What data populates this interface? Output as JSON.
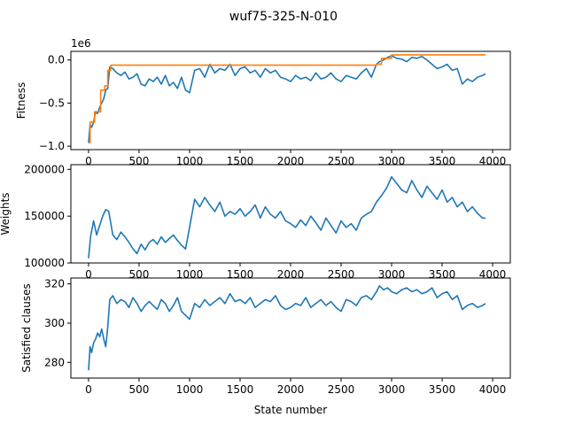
{
  "figure": {
    "title": "wuf75-325-N-010",
    "xlabel": "State number"
  },
  "colors": {
    "blue": "#1f77b4",
    "orange": "#ff7f0e",
    "axis": "#000000"
  },
  "chart_data": [
    {
      "type": "line",
      "title": "",
      "xlabel": "",
      "ylabel": "Fitness",
      "offset_text": "1e6",
      "xlim": [
        -175,
        4175
      ],
      "ylim": [
        -1.04,
        0.1
      ],
      "xticks": [
        0,
        500,
        1000,
        1500,
        2000,
        2500,
        3000,
        3500,
        4000
      ],
      "yticks": [
        0.0,
        -0.5,
        -1.0
      ],
      "ytick_labels": [
        "0.0",
        "−0.5",
        "−1.0"
      ],
      "grid": false,
      "series": [
        {
          "color": "#1f77b4",
          "x": [
            0,
            15,
            30,
            50,
            70,
            90,
            110,
            130,
            150,
            170,
            190,
            210,
            240,
            280,
            320,
            360,
            400,
            440,
            480,
            520,
            560,
            600,
            640,
            680,
            720,
            760,
            800,
            840,
            880,
            920,
            960,
            1000,
            1050,
            1100,
            1150,
            1200,
            1250,
            1300,
            1350,
            1400,
            1450,
            1500,
            1550,
            1600,
            1650,
            1700,
            1750,
            1800,
            1850,
            1900,
            1950,
            2000,
            2050,
            2100,
            2150,
            2200,
            2250,
            2300,
            2350,
            2400,
            2450,
            2500,
            2550,
            2600,
            2650,
            2700,
            2750,
            2800,
            2850,
            2880,
            2920,
            2960,
            3000,
            3050,
            3100,
            3150,
            3200,
            3250,
            3300,
            3350,
            3400,
            3450,
            3500,
            3550,
            3600,
            3650,
            3700,
            3750,
            3800,
            3850,
            3900,
            3930
          ],
          "y": [
            -0.96,
            -0.75,
            -0.78,
            -0.72,
            -0.6,
            -0.62,
            -0.55,
            -0.5,
            -0.45,
            -0.35,
            -0.33,
            -0.08,
            -0.1,
            -0.15,
            -0.18,
            -0.14,
            -0.22,
            -0.2,
            -0.16,
            -0.28,
            -0.3,
            -0.22,
            -0.25,
            -0.2,
            -0.28,
            -0.18,
            -0.3,
            -0.26,
            -0.33,
            -0.2,
            -0.35,
            -0.38,
            -0.12,
            -0.1,
            -0.2,
            -0.05,
            -0.15,
            -0.1,
            -0.12,
            -0.05,
            -0.18,
            -0.1,
            -0.08,
            -0.15,
            -0.12,
            -0.2,
            -0.1,
            -0.15,
            -0.12,
            -0.2,
            -0.22,
            -0.25,
            -0.18,
            -0.22,
            -0.2,
            -0.24,
            -0.15,
            -0.22,
            -0.2,
            -0.15,
            -0.22,
            -0.25,
            -0.18,
            -0.2,
            -0.22,
            -0.15,
            -0.1,
            -0.2,
            -0.05,
            -0.02,
            0.0,
            0.03,
            0.05,
            0.02,
            0.01,
            -0.02,
            0.03,
            0.02,
            0.04,
            0.0,
            -0.05,
            -0.1,
            -0.08,
            -0.05,
            -0.12,
            -0.1,
            -0.28,
            -0.22,
            -0.25,
            -0.2,
            -0.18,
            -0.16
          ]
        },
        {
          "color": "#ff7f0e",
          "x": [
            0,
            15,
            15,
            60,
            60,
            120,
            120,
            160,
            160,
            190,
            190,
            220,
            220,
            2850,
            2850,
            2900,
            2900,
            3000,
            3000,
            3930
          ],
          "y": [
            -0.96,
            -0.96,
            -0.72,
            -0.72,
            -0.6,
            -0.6,
            -0.35,
            -0.35,
            -0.3,
            -0.3,
            -0.12,
            -0.12,
            -0.06,
            -0.06,
            -0.05,
            -0.05,
            0.02,
            0.02,
            0.06,
            0.06
          ]
        }
      ]
    },
    {
      "type": "line",
      "title": "",
      "xlabel": "",
      "ylabel": "Weights",
      "xlim": [
        -175,
        4175
      ],
      "ylim": [
        100000,
        205000
      ],
      "xticks": [
        0,
        500,
        1000,
        1500,
        2000,
        2500,
        3000,
        3500,
        4000
      ],
      "yticks": [
        100000,
        150000,
        200000
      ],
      "grid": false,
      "series": [
        {
          "color": "#1f77b4",
          "x": [
            0,
            20,
            50,
            80,
            110,
            140,
            170,
            200,
            240,
            280,
            320,
            360,
            400,
            440,
            480,
            520,
            560,
            600,
            640,
            680,
            720,
            760,
            800,
            840,
            880,
            920,
            960,
            1000,
            1050,
            1100,
            1150,
            1200,
            1250,
            1300,
            1350,
            1400,
            1450,
            1500,
            1550,
            1600,
            1650,
            1700,
            1750,
            1800,
            1850,
            1900,
            1950,
            2000,
            2050,
            2100,
            2150,
            2200,
            2250,
            2300,
            2350,
            2400,
            2450,
            2500,
            2550,
            2600,
            2650,
            2700,
            2750,
            2800,
            2850,
            2900,
            2950,
            3000,
            3050,
            3100,
            3150,
            3200,
            3250,
            3300,
            3350,
            3400,
            3450,
            3500,
            3550,
            3600,
            3650,
            3700,
            3750,
            3800,
            3850,
            3900,
            3930
          ],
          "y": [
            105000,
            128000,
            145000,
            130000,
            140000,
            150000,
            157000,
            155000,
            130000,
            125000,
            133000,
            128000,
            122000,
            115000,
            110000,
            120000,
            114000,
            122000,
            125000,
            120000,
            128000,
            122000,
            126000,
            130000,
            124000,
            119000,
            115000,
            138000,
            168000,
            160000,
            170000,
            162000,
            155000,
            165000,
            150000,
            155000,
            152000,
            158000,
            150000,
            155000,
            162000,
            148000,
            160000,
            152000,
            148000,
            155000,
            145000,
            142000,
            138000,
            146000,
            140000,
            150000,
            143000,
            135000,
            148000,
            140000,
            132000,
            145000,
            138000,
            142000,
            135000,
            148000,
            152000,
            155000,
            165000,
            172000,
            180000,
            192000,
            185000,
            178000,
            175000,
            188000,
            178000,
            170000,
            182000,
            175000,
            168000,
            178000,
            165000,
            170000,
            160000,
            165000,
            155000,
            160000,
            153000,
            148000,
            148000
          ]
        }
      ]
    },
    {
      "type": "line",
      "title": "",
      "xlabel": "State number",
      "ylabel": "Satisfied clauses",
      "xlim": [
        -175,
        4175
      ],
      "ylim": [
        272,
        323
      ],
      "xticks": [
        0,
        500,
        1000,
        1500,
        2000,
        2500,
        3000,
        3500,
        4000
      ],
      "yticks": [
        280,
        300,
        320
      ],
      "grid": false,
      "series": [
        {
          "color": "#1f77b4",
          "x": [
            0,
            15,
            30,
            50,
            70,
            90,
            110,
            130,
            150,
            170,
            190,
            210,
            240,
            280,
            320,
            360,
            400,
            440,
            480,
            520,
            560,
            600,
            640,
            680,
            720,
            760,
            800,
            840,
            880,
            920,
            960,
            1000,
            1050,
            1100,
            1150,
            1200,
            1250,
            1300,
            1350,
            1400,
            1450,
            1500,
            1550,
            1600,
            1650,
            1700,
            1750,
            1800,
            1850,
            1900,
            1950,
            2000,
            2050,
            2100,
            2150,
            2200,
            2250,
            2300,
            2350,
            2400,
            2450,
            2500,
            2550,
            2600,
            2650,
            2700,
            2750,
            2800,
            2850,
            2880,
            2920,
            2960,
            3000,
            3050,
            3100,
            3150,
            3200,
            3250,
            3300,
            3350,
            3400,
            3450,
            3500,
            3550,
            3600,
            3650,
            3700,
            3750,
            3800,
            3850,
            3900,
            3930
          ],
          "y": [
            276,
            288,
            285,
            290,
            292,
            295,
            293,
            297,
            292,
            288,
            298,
            312,
            314,
            310,
            312,
            311,
            308,
            313,
            310,
            306,
            309,
            311,
            309,
            307,
            312,
            310,
            306,
            309,
            313,
            306,
            304,
            302,
            310,
            308,
            312,
            309,
            311,
            313,
            310,
            315,
            311,
            312,
            310,
            313,
            308,
            310,
            312,
            311,
            314,
            309,
            307,
            308,
            310,
            309,
            313,
            308,
            310,
            312,
            309,
            311,
            308,
            306,
            312,
            311,
            309,
            313,
            314,
            312,
            316,
            319,
            317,
            318,
            316,
            315,
            317,
            318,
            316,
            317,
            315,
            316,
            318,
            313,
            315,
            316,
            312,
            314,
            307,
            309,
            310,
            308,
            309,
            310
          ]
        }
      ]
    }
  ]
}
